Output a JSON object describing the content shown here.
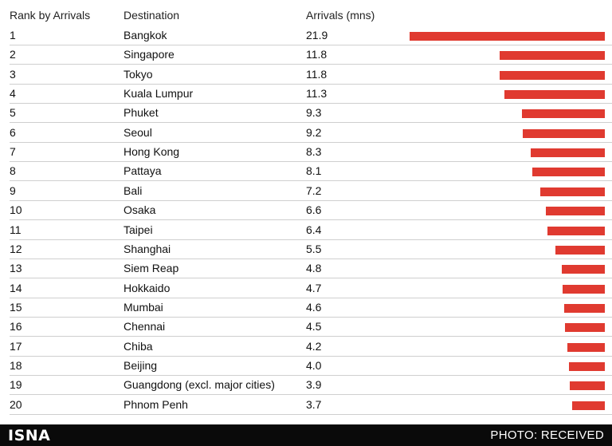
{
  "chart_data": {
    "type": "bar",
    "orientation": "horizontal",
    "columns": [
      "Rank by Arrivals",
      "Destination",
      "Arrivals (mns)"
    ],
    "ranks": [
      "1",
      "2",
      "3",
      "4",
      "5",
      "6",
      "7",
      "8",
      "9",
      "10",
      "11",
      "12",
      "13",
      "14",
      "15",
      "16",
      "17",
      "18",
      "19",
      "20"
    ],
    "categories": [
      "Bangkok",
      "Singapore",
      "Tokyo",
      "Kuala Lumpur",
      "Phuket",
      "Seoul",
      "Hong Kong",
      "Pattaya",
      "Bali",
      "Osaka",
      "Taipei",
      "Shanghai",
      "Siem Reap",
      "Hokkaido",
      "Mumbai",
      "Chennai",
      "Chiba",
      "Beijing",
      "Guangdong (excl. major cities)",
      "Phnom Penh"
    ],
    "values": [
      21.9,
      11.8,
      11.8,
      11.3,
      9.3,
      9.2,
      8.3,
      8.1,
      7.2,
      6.6,
      6.4,
      5.5,
      4.8,
      4.7,
      4.6,
      4.5,
      4.2,
      4.0,
      3.9,
      3.7
    ],
    "value_labels": [
      "21.9",
      "11.8",
      "11.8",
      "11.3",
      "9.3",
      "9.2",
      "8.3",
      "8.1",
      "7.2",
      "6.6",
      "6.4",
      "5.5",
      "4.8",
      "4.7",
      "4.6",
      "4.5",
      "4.2",
      "4.0",
      "3.9",
      "3.7"
    ],
    "bar_color": "#e03a30",
    "bar_alignment": "right",
    "xlim": [
      0,
      21.9
    ]
  },
  "footer": {
    "brand": "ISNA",
    "credit": "PHOTO: RECEIVED"
  }
}
